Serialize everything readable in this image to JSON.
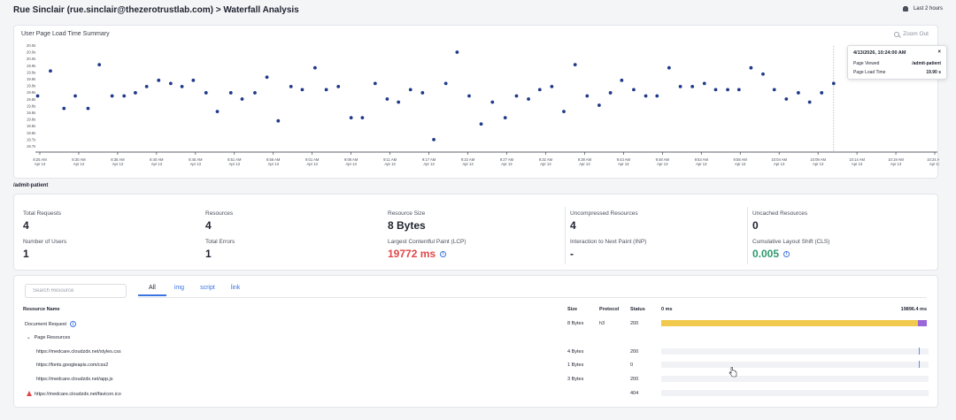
{
  "header": {
    "title": "Rue Sinclair (rue.sinclair@thezerotrustlab.com) > Waterfall Analysis",
    "time_range": "Last 2 hours",
    "time_range_icon": "calendar-icon"
  },
  "chart": {
    "title": "User Page Load Time Summary",
    "zoom_out": "Zoom Out",
    "zoom_icon": "magnifier-icon",
    "dot_color": "#1f3a8a"
  },
  "chart_data": {
    "type": "scatter",
    "title": "User Page Load Time Summary",
    "y_ticks": [
      "20.0s",
      "20.0s",
      "20.0s",
      "19.9s",
      "19.9s",
      "19.9s",
      "19.9s",
      "19.9s",
      "19.8s",
      "19.8s",
      "19.8s",
      "19.8s",
      "19.8s",
      "19.8s",
      "19.7s",
      "19.7s"
    ],
    "x_ticks": [
      {
        "time": "8:25 AM",
        "date": "Apr 13"
      },
      {
        "time": "8:30 AM",
        "date": "Apr 13"
      },
      {
        "time": "8:35 AM",
        "date": "Apr 13"
      },
      {
        "time": "8:40 AM",
        "date": "Apr 13"
      },
      {
        "time": "8:45 AM",
        "date": "Apr 13"
      },
      {
        "time": "8:51 AM",
        "date": "Apr 13"
      },
      {
        "time": "8:56 AM",
        "date": "Apr 13"
      },
      {
        "time": "9:01 AM",
        "date": "Apr 13"
      },
      {
        "time": "9:06 AM",
        "date": "Apr 13"
      },
      {
        "time": "9:11 AM",
        "date": "Apr 13"
      },
      {
        "time": "9:17 AM",
        "date": "Apr 13"
      },
      {
        "time": "9:22 AM",
        "date": "Apr 13"
      },
      {
        "time": "9:27 AM",
        "date": "Apr 13"
      },
      {
        "time": "9:32 AM",
        "date": "Apr 13"
      },
      {
        "time": "9:38 AM",
        "date": "Apr 13"
      },
      {
        "time": "9:43 AM",
        "date": "Apr 13"
      },
      {
        "time": "9:48 AM",
        "date": "Apr 13"
      },
      {
        "time": "9:53 AM",
        "date": "Apr 13"
      },
      {
        "time": "9:58 AM",
        "date": "Apr 13"
      },
      {
        "time": "10:04 AM",
        "date": "Apr 13"
      },
      {
        "time": "10:09 AM",
        "date": "Apr 13"
      },
      {
        "time": "10:14 AM",
        "date": "Apr 13"
      },
      {
        "time": "10:19 AM",
        "date": "Apr 13"
      },
      {
        "time": "10:24 AM",
        "date": "Apr 13"
      }
    ],
    "x_range_minutes": [
      0,
      120
    ],
    "y_unit": "s",
    "ylim": [
      19.68,
      20.02
    ],
    "points": [
      {
        "x": 0.3,
        "y": 19.86
      },
      {
        "x": 2.0,
        "y": 19.94
      },
      {
        "x": 3.8,
        "y": 19.82
      },
      {
        "x": 5.3,
        "y": 19.86
      },
      {
        "x": 7.0,
        "y": 19.82
      },
      {
        "x": 8.5,
        "y": 19.96
      },
      {
        "x": 10.2,
        "y": 19.86
      },
      {
        "x": 11.8,
        "y": 19.86
      },
      {
        "x": 13.3,
        "y": 19.87
      },
      {
        "x": 14.8,
        "y": 19.89
      },
      {
        "x": 16.4,
        "y": 19.91
      },
      {
        "x": 18.0,
        "y": 19.9
      },
      {
        "x": 19.5,
        "y": 19.89
      },
      {
        "x": 21.0,
        "y": 19.91
      },
      {
        "x": 22.7,
        "y": 19.87
      },
      {
        "x": 24.2,
        "y": 19.81
      },
      {
        "x": 26.0,
        "y": 19.87
      },
      {
        "x": 27.5,
        "y": 19.85
      },
      {
        "x": 29.2,
        "y": 19.87
      },
      {
        "x": 30.8,
        "y": 19.92
      },
      {
        "x": 32.3,
        "y": 19.78
      },
      {
        "x": 34.0,
        "y": 19.89
      },
      {
        "x": 35.5,
        "y": 19.88
      },
      {
        "x": 37.2,
        "y": 19.95
      },
      {
        "x": 38.7,
        "y": 19.88
      },
      {
        "x": 40.3,
        "y": 19.89
      },
      {
        "x": 42.0,
        "y": 19.79
      },
      {
        "x": 43.5,
        "y": 19.79
      },
      {
        "x": 45.2,
        "y": 19.9
      },
      {
        "x": 46.8,
        "y": 19.85
      },
      {
        "x": 48.3,
        "y": 19.84
      },
      {
        "x": 49.9,
        "y": 19.88
      },
      {
        "x": 51.5,
        "y": 19.87
      },
      {
        "x": 53.0,
        "y": 19.72
      },
      {
        "x": 54.6,
        "y": 19.9
      },
      {
        "x": 56.1,
        "y": 20.0
      },
      {
        "x": 57.7,
        "y": 19.86
      },
      {
        "x": 59.3,
        "y": 19.77
      },
      {
        "x": 60.8,
        "y": 19.84
      },
      {
        "x": 62.5,
        "y": 19.79
      },
      {
        "x": 64.0,
        "y": 19.86
      },
      {
        "x": 65.6,
        "y": 19.85
      },
      {
        "x": 67.1,
        "y": 19.88
      },
      {
        "x": 68.7,
        "y": 19.89
      },
      {
        "x": 70.3,
        "y": 19.81
      },
      {
        "x": 71.8,
        "y": 19.96
      },
      {
        "x": 73.4,
        "y": 19.86
      },
      {
        "x": 75.0,
        "y": 19.83
      },
      {
        "x": 76.5,
        "y": 19.87
      },
      {
        "x": 78.0,
        "y": 19.91
      },
      {
        "x": 79.6,
        "y": 19.88
      },
      {
        "x": 81.2,
        "y": 19.86
      },
      {
        "x": 82.7,
        "y": 19.86
      },
      {
        "x": 84.3,
        "y": 19.95
      },
      {
        "x": 85.8,
        "y": 19.89
      },
      {
        "x": 87.4,
        "y": 19.89
      },
      {
        "x": 89.0,
        "y": 19.9
      },
      {
        "x": 90.5,
        "y": 19.88
      },
      {
        "x": 92.1,
        "y": 19.88
      },
      {
        "x": 93.6,
        "y": 19.88
      },
      {
        "x": 95.2,
        "y": 19.95
      },
      {
        "x": 96.8,
        "y": 19.93
      },
      {
        "x": 98.3,
        "y": 19.88
      },
      {
        "x": 99.9,
        "y": 19.85
      },
      {
        "x": 101.5,
        "y": 19.87
      },
      {
        "x": 103.0,
        "y": 19.84
      },
      {
        "x": 104.6,
        "y": 19.87
      },
      {
        "x": 106.2,
        "y": 19.9
      }
    ],
    "highlight_x": 106.2
  },
  "tooltip": {
    "date": "4/13/2026, 10:24:00 AM",
    "close": "×",
    "rows": [
      {
        "label": "Page Viewed",
        "value": "/admit-patient"
      },
      {
        "label": "Page Load Time",
        "value": "19.90 s"
      }
    ]
  },
  "route": "/admit-patient",
  "stats": [
    {
      "label": "Total Requests",
      "value": "4"
    },
    {
      "label": "Resources",
      "value": "4"
    },
    {
      "label": "Resource Size",
      "value": "8 Bytes"
    },
    {
      "label": "Uncompressed Resources",
      "value": "4"
    },
    {
      "label": "Uncached Resources",
      "value": "0"
    },
    {
      "label": "Number of Users",
      "value": "1"
    },
    {
      "label": "Total Errors",
      "value": "1"
    },
    {
      "label": "Largest Contentful Paint (LCP)",
      "value": "19772 ms",
      "color": "#e04848"
    },
    {
      "label": "Interaction to Next Paint (INP)",
      "value": "-"
    },
    {
      "label": "Cumulative Layout Shift (CLS)",
      "value": "0.005",
      "color": "#2e9a6f"
    }
  ],
  "resources": {
    "search_placeholder": "Search Resource",
    "tabs": [
      "All",
      "img",
      "script",
      "link"
    ],
    "active_tab": "All",
    "columns": {
      "name": "Resource Name",
      "size": "Size",
      "protocol": "Protocol",
      "status": "Status",
      "start": "0 ms",
      "end": "19896.4 ms"
    },
    "rows": [
      {
        "name": "Document Request",
        "size": "8 Bytes",
        "protocol": "h3",
        "status": "200"
      },
      {
        "name": "Page Resources"
      },
      {
        "name": "https://medcare.cloudzdx.net/styles.css",
        "size": "4 Bytes",
        "protocol": "",
        "status": "200"
      },
      {
        "name": "https://fonts.googleapis.com/css2",
        "size": "1 Bytes",
        "protocol": "",
        "status": "0"
      },
      {
        "name": "https://medcare.cloudzdx.net/app.js",
        "size": "3 Bytes",
        "protocol": "",
        "status": "200"
      },
      {
        "name": "https://medcare.cloudzdx.net/favicon.ico",
        "size": "",
        "protocol": "",
        "status": "404"
      }
    ]
  },
  "colors": {
    "accent": "#3b74e0",
    "waterfall_bar": "#f1c94c",
    "waterfall_end": "#9a67d6",
    "error": "#e04848",
    "good": "#2e9a6f"
  }
}
